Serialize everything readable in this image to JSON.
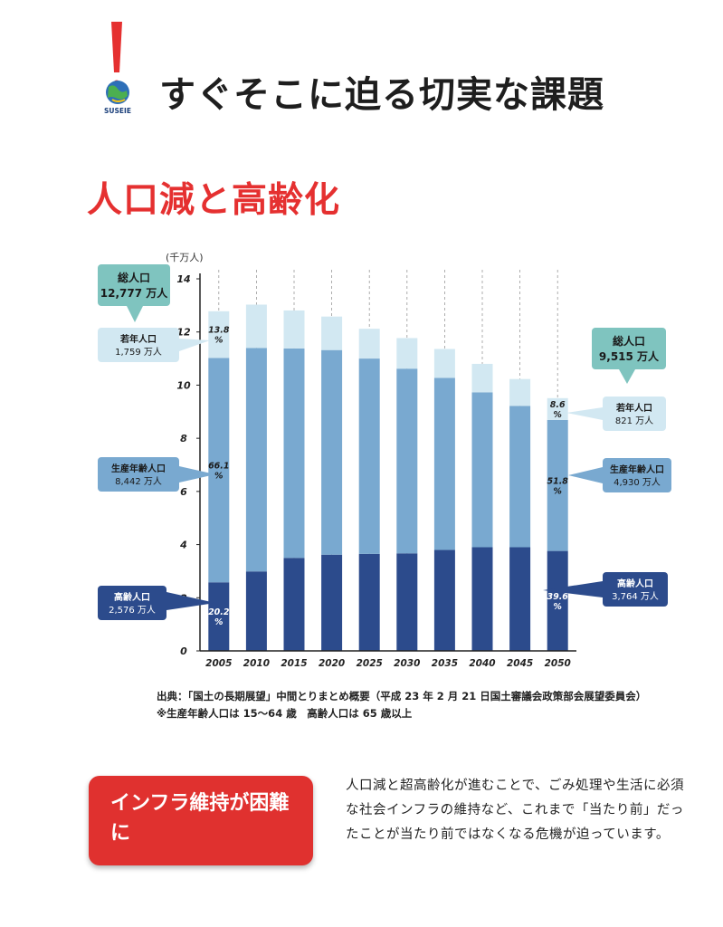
{
  "header": {
    "logo_text": "SUSEIE",
    "title": "すぐそこに迫る切実な課題"
  },
  "section": {
    "title": "人口減と高齢化"
  },
  "chart_data": {
    "type": "bar",
    "stacked": true,
    "y_unit_label": "(千万人)",
    "ylim": [
      0,
      14
    ],
    "y_ticks": [
      0,
      2,
      4,
      6,
      8,
      10,
      12,
      14
    ],
    "grid": "vertical dashed",
    "categories": [
      "2005",
      "2010",
      "2015",
      "2020",
      "2025",
      "2030",
      "2035",
      "2040",
      "2045",
      "2050"
    ],
    "series": [
      {
        "name": "高齢人口",
        "color": "#2c4b8c",
        "values": [
          2.58,
          2.99,
          3.5,
          3.62,
          3.65,
          3.67,
          3.8,
          3.9,
          3.9,
          3.76
        ]
      },
      {
        "name": "生産年齢人口",
        "color": "#79a9d0",
        "values": [
          8.44,
          8.41,
          7.88,
          7.7,
          7.35,
          6.95,
          6.47,
          5.83,
          5.32,
          4.93
        ]
      },
      {
        "name": "若年人口",
        "color": "#d2e8f2",
        "values": [
          1.76,
          1.63,
          1.43,
          1.26,
          1.12,
          1.15,
          1.09,
          1.07,
          1.01,
          0.82
        ]
      }
    ],
    "bar_labels": {
      "2005": [
        "20.2\n%",
        "66.1\n%",
        "13.8\n%"
      ],
      "2050": [
        "39.6\n%",
        "51.8\n%",
        "8.6\n%"
      ]
    },
    "annotations": {
      "left": [
        {
          "label": "総人口",
          "value": "12,777 万人",
          "color": "#7fc4bf"
        },
        {
          "label": "若年人口",
          "value": "1,759 万人",
          "color": "#d2e8f2"
        },
        {
          "label": "生産年齢人口",
          "value": "8,442 万人",
          "color": "#79a9d0"
        },
        {
          "label": "高齢人口",
          "value": "2,576 万人",
          "color": "#2c4b8c"
        }
      ],
      "right": [
        {
          "label": "総人口",
          "value": "9,515 万人",
          "color": "#7fc4bf"
        },
        {
          "label": "若年人口",
          "value": "821 万人",
          "color": "#d2e8f2"
        },
        {
          "label": "生産年齢人口",
          "value": "4,930 万人",
          "color": "#79a9d0"
        },
        {
          "label": "高齢人口",
          "value": "3,764 万人",
          "color": "#2c4b8c"
        }
      ]
    }
  },
  "source": {
    "line1": "出典：「国土の長期展望」中間とりまとめ概要（平成 23 年 2 月 21 日国土審議会政策部会展望委員会）",
    "line2": "※生産年齢人口は 15〜64 歳　高齢人口は 65 歳以上"
  },
  "callout": {
    "text": "インフラ維持が困難に"
  },
  "body_text": "人口減と超高齢化が進むことで、ごみ処理や生活に必須な社会インフラの維持など、これまで「当たり前」だったことが当たり前ではなくなる危機が迫っています。",
  "colors": {
    "accent_red": "#e0312f",
    "teal": "#7fc4bf"
  }
}
